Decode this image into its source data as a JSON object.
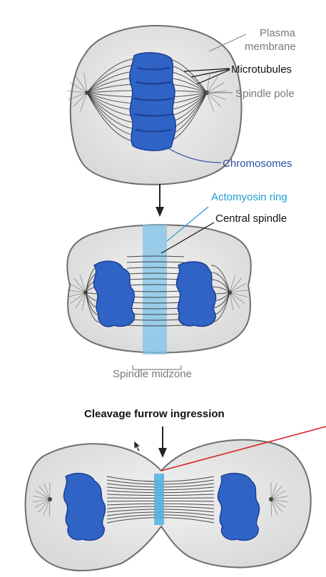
{
  "labels": {
    "plasma_membrane_line1": "Plasma",
    "plasma_membrane_line2": "membrane",
    "microtubules": "Microtubules",
    "spindle_pole": "Spindle pole",
    "chromosomes": "Chromosomes",
    "actomyosin_ring": "Actomyosin ring",
    "central_spindle": "Central spindle",
    "spindle_midzone": "Spindle midzone",
    "cleavage_furrow": "Cleavage furrow ingression"
  },
  "colors": {
    "membrane_fill": "#e6e6e6",
    "membrane_stroke": "#6e6e6e",
    "chromosome": "#2f63c6",
    "chromosome_dark": "#1c3f93",
    "ring": "#7ec3e8",
    "microtubule": "#2a2a2a",
    "annotation_red": "#d8262b"
  }
}
